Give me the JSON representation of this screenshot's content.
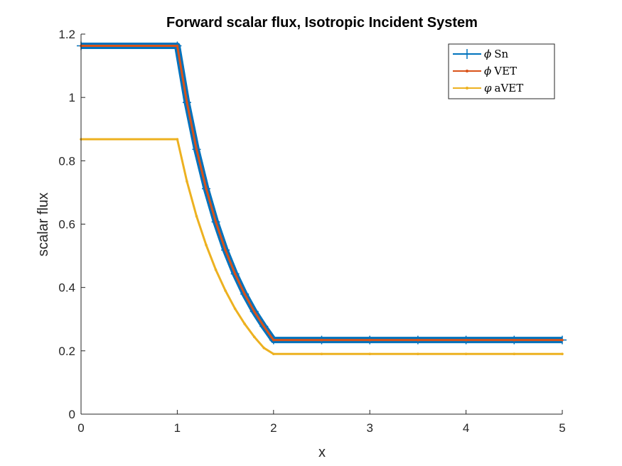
{
  "chart_data": {
    "type": "line",
    "title": "Forward scalar flux, Isotropic Incident System",
    "xlabel": "x",
    "ylabel": "scalar flux",
    "xlim": [
      0,
      5
    ],
    "ylim": [
      0,
      1.2
    ],
    "xticks": [
      0,
      1,
      2,
      3,
      4,
      5
    ],
    "yticks": [
      0,
      0.2,
      0.4,
      0.6,
      0.8,
      1,
      1.2
    ],
    "xtick_labels": [
      "0",
      "1",
      "2",
      "3",
      "4",
      "5"
    ],
    "ytick_labels": [
      "0",
      "0.2",
      "0.4",
      "0.6",
      "0.8",
      "1",
      "1.2"
    ],
    "grid": false,
    "legend_position": "top-right",
    "series": [
      {
        "name": "ϕ Sn",
        "legend_symbol": "ϕ",
        "legend_text": "Sn",
        "color": "#0072BD",
        "marker": "plus",
        "x": [
          0,
          1,
          1.1,
          1.2,
          1.3,
          1.4,
          1.5,
          1.6,
          1.7,
          1.8,
          1.9,
          2,
          2.5,
          3,
          3.5,
          4,
          4.5,
          5
        ],
        "y": [
          1.163,
          1.163,
          0.984,
          0.836,
          0.712,
          0.607,
          0.518,
          0.443,
          0.379,
          0.324,
          0.277,
          0.234,
          0.234,
          0.234,
          0.234,
          0.234,
          0.234,
          0.234
        ]
      },
      {
        "name": "ϕ VET",
        "legend_symbol": "ϕ",
        "legend_text": "VET",
        "color": "#D95319",
        "marker": "dot",
        "x": [
          0,
          1,
          1.1,
          1.2,
          1.3,
          1.4,
          1.5,
          1.6,
          1.7,
          1.8,
          1.9,
          2,
          2.5,
          3,
          3.5,
          4,
          4.5,
          5
        ],
        "y": [
          1.163,
          1.163,
          0.984,
          0.836,
          0.712,
          0.607,
          0.518,
          0.443,
          0.379,
          0.324,
          0.277,
          0.234,
          0.234,
          0.234,
          0.234,
          0.234,
          0.234,
          0.234
        ]
      },
      {
        "name": "φ aVET",
        "legend_symbol": "φ",
        "legend_text": "aVET",
        "color": "#EDB120",
        "marker": "dot",
        "x": [
          0,
          1,
          1.1,
          1.2,
          1.3,
          1.4,
          1.5,
          1.6,
          1.7,
          1.8,
          1.9,
          2,
          2.5,
          3,
          3.5,
          4,
          4.5,
          5
        ],
        "y": [
          0.868,
          0.868,
          0.735,
          0.625,
          0.534,
          0.456,
          0.39,
          0.333,
          0.285,
          0.244,
          0.209,
          0.19,
          0.19,
          0.19,
          0.19,
          0.19,
          0.19,
          0.19
        ]
      }
    ]
  }
}
